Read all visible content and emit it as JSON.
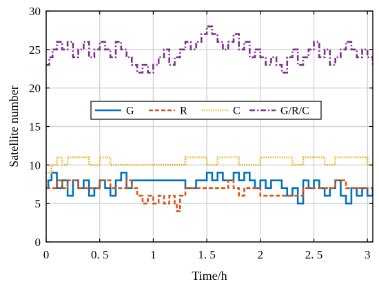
{
  "chart_data": {
    "type": "line",
    "title": "",
    "xlabel": "Time/h",
    "ylabel": "Satellite number",
    "xlim": [
      0,
      3.05
    ],
    "ylim": [
      0,
      30
    ],
    "xticks": [
      {
        "value": 0,
        "label": "0"
      },
      {
        "value": 0.5,
        "label": "0. 5"
      },
      {
        "value": 1,
        "label": "1"
      },
      {
        "value": 1.5,
        "label": "1. 5"
      },
      {
        "value": 2,
        "label": "2"
      },
      {
        "value": 2.5,
        "label": "2. 5"
      },
      {
        "value": 3,
        "label": "3"
      }
    ],
    "yticks": [
      {
        "value": 0,
        "label": "0"
      },
      {
        "value": 5,
        "label": "5"
      },
      {
        "value": 10,
        "label": "10"
      },
      {
        "value": 15,
        "label": "15"
      },
      {
        "value": 20,
        "label": "20"
      },
      {
        "value": 25,
        "label": "25"
      },
      {
        "value": 30,
        "label": "30"
      }
    ],
    "grid": true,
    "legend": {
      "placement": "center",
      "orientation": "horizontal"
    },
    "series": [
      {
        "name": "G",
        "color": "#0072BD",
        "dash": "solid",
        "x": [
          0.0,
          0.02,
          0.05,
          0.1,
          0.15,
          0.2,
          0.25,
          0.3,
          0.35,
          0.4,
          0.45,
          0.5,
          0.55,
          0.6,
          0.65,
          0.7,
          0.75,
          0.8,
          0.9,
          1.0,
          1.1,
          1.2,
          1.25,
          1.3,
          1.4,
          1.5,
          1.55,
          1.6,
          1.65,
          1.7,
          1.75,
          1.8,
          1.85,
          1.9,
          1.95,
          2.0,
          2.05,
          2.1,
          2.15,
          2.2,
          2.25,
          2.3,
          2.35,
          2.4,
          2.45,
          2.5,
          2.55,
          2.6,
          2.65,
          2.7,
          2.75,
          2.8,
          2.85,
          2.9,
          2.95,
          3.0,
          3.05
        ],
        "y": [
          7,
          8,
          9,
          7,
          8,
          6,
          8,
          7,
          8,
          6,
          7,
          8,
          7,
          6,
          8,
          9,
          7,
          8,
          8,
          8,
          8,
          8,
          8,
          7,
          8,
          9,
          8,
          9,
          8,
          8,
          9,
          8,
          9,
          8,
          7,
          8,
          7,
          8,
          8,
          7,
          6,
          7,
          5,
          8,
          7,
          8,
          7,
          6,
          7,
          8,
          6,
          5,
          7,
          6,
          7,
          6,
          7
        ]
      },
      {
        "name": "R",
        "color": "#D95319",
        "dash": "dashed",
        "x": [
          0.0,
          0.05,
          0.1,
          0.15,
          0.2,
          0.3,
          0.4,
          0.5,
          0.6,
          0.7,
          0.75,
          0.8,
          0.85,
          0.9,
          0.95,
          1.0,
          1.05,
          1.1,
          1.15,
          1.2,
          1.22,
          1.25,
          1.3,
          1.4,
          1.5,
          1.6,
          1.7,
          1.75,
          1.8,
          1.85,
          1.9,
          2.0,
          2.1,
          2.2,
          2.3,
          2.4,
          2.5,
          2.6,
          2.7,
          2.8,
          2.9,
          3.0,
          3.05
        ],
        "y": [
          7,
          7,
          8,
          7,
          8,
          7,
          7,
          8,
          7,
          7,
          8,
          7,
          6,
          5,
          6,
          5,
          6,
          5,
          6,
          5,
          4,
          6,
          7,
          7,
          7,
          7,
          8,
          7,
          6,
          7,
          7,
          6,
          6,
          6,
          6,
          7,
          7,
          7,
          8,
          7,
          7,
          7,
          7
        ]
      },
      {
        "name": "C",
        "color": "#EDB120",
        "dash": "dotted",
        "x": [
          0.0,
          0.05,
          0.1,
          0.15,
          0.2,
          0.3,
          0.4,
          0.5,
          0.6,
          0.7,
          0.8,
          0.9,
          1.0,
          1.1,
          1.2,
          1.3,
          1.4,
          1.5,
          1.6,
          1.7,
          1.8,
          1.9,
          2.0,
          2.1,
          2.2,
          2.3,
          2.4,
          2.5,
          2.6,
          2.7,
          2.8,
          2.9,
          3.0,
          3.05
        ],
        "y": [
          9,
          10,
          11,
          10,
          11,
          11,
          10,
          11,
          10,
          10,
          10,
          10,
          10,
          10,
          10,
          11,
          11,
          10,
          11,
          11,
          10,
          10,
          11,
          11,
          11,
          10,
          11,
          11,
          10,
          11,
          11,
          11,
          10,
          10
        ]
      },
      {
        "name": "G/R/C",
        "color": "#7E2F8E",
        "dash": "dashdot",
        "x": [
          0.0,
          0.03,
          0.06,
          0.1,
          0.15,
          0.2,
          0.25,
          0.3,
          0.35,
          0.4,
          0.45,
          0.5,
          0.55,
          0.6,
          0.65,
          0.7,
          0.75,
          0.8,
          0.85,
          0.9,
          0.95,
          1.0,
          1.05,
          1.1,
          1.15,
          1.2,
          1.25,
          1.3,
          1.35,
          1.4,
          1.45,
          1.5,
          1.55,
          1.6,
          1.65,
          1.7,
          1.75,
          1.8,
          1.85,
          1.9,
          1.95,
          2.0,
          2.05,
          2.1,
          2.15,
          2.2,
          2.25,
          2.3,
          2.35,
          2.4,
          2.45,
          2.5,
          2.55,
          2.6,
          2.65,
          2.7,
          2.75,
          2.8,
          2.85,
          2.9,
          2.95,
          3.0,
          3.05
        ],
        "y": [
          23,
          24,
          25,
          26,
          25,
          26,
          24,
          25,
          26,
          24,
          25,
          26,
          25,
          24,
          26,
          25,
          24,
          23,
          22,
          23,
          22,
          23,
          24,
          25,
          23,
          24,
          25,
          26,
          25,
          26,
          27,
          28,
          27,
          26,
          25,
          26,
          27,
          25,
          26,
          24,
          25,
          24,
          23,
          24,
          23,
          22,
          24,
          25,
          23,
          24,
          25,
          26,
          24,
          25,
          23,
          24,
          25,
          26,
          25,
          24,
          25,
          24,
          23
        ]
      }
    ]
  }
}
